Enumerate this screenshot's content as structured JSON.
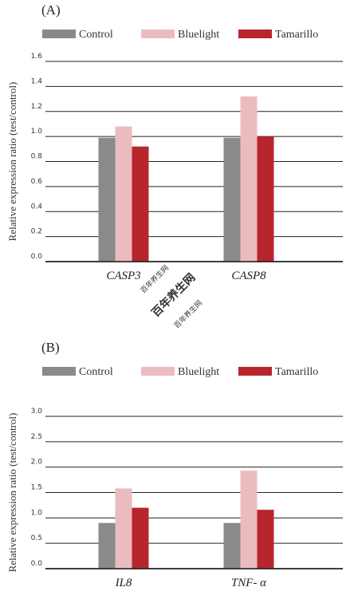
{
  "colors": {
    "control": "#8a8a8a",
    "bluelight": "#ebbcbf",
    "tamarillo": "#b8262d",
    "grid": "#222222"
  },
  "watermark": {
    "small_top": "百年养生网",
    "big": "百年养生网",
    "small_bottom": "百年养生网"
  },
  "chart_data": [
    {
      "panel": "(A)",
      "type": "bar",
      "categories": [
        "CASP3",
        "CASP8"
      ],
      "series": [
        {
          "name": "Control",
          "values": [
            0.99,
            0.99
          ]
        },
        {
          "name": "Bluelight",
          "values": [
            1.08,
            1.32
          ]
        },
        {
          "name": "Tamarillo",
          "values": [
            0.92,
            1.0
          ]
        }
      ],
      "ylabel": "Relative expression ratio (test/control)",
      "ylim": [
        0,
        1.6
      ],
      "yticks": [
        "0.0",
        "0.2",
        "0.4",
        "0.6",
        "0.8",
        "1.0",
        "1.2",
        "1.4",
        "1.6"
      ],
      "grid": true,
      "legend": "top"
    },
    {
      "panel": "(B)",
      "type": "bar",
      "categories": [
        "IL8",
        "TNF- α"
      ],
      "series": [
        {
          "name": "Control",
          "values": [
            0.9,
            0.9
          ]
        },
        {
          "name": "Bluelight",
          "values": [
            1.58,
            1.93
          ]
        },
        {
          "name": "Tamarillo",
          "values": [
            1.2,
            1.16
          ]
        }
      ],
      "ylabel": "Relative expression ratio (test/control)",
      "ylim": [
        0,
        3.0
      ],
      "yticks": [
        "0.0",
        "0.5",
        "1.0",
        "1.5",
        "2.0",
        "2.5",
        "3.0"
      ],
      "grid": true,
      "legend": "top"
    }
  ]
}
